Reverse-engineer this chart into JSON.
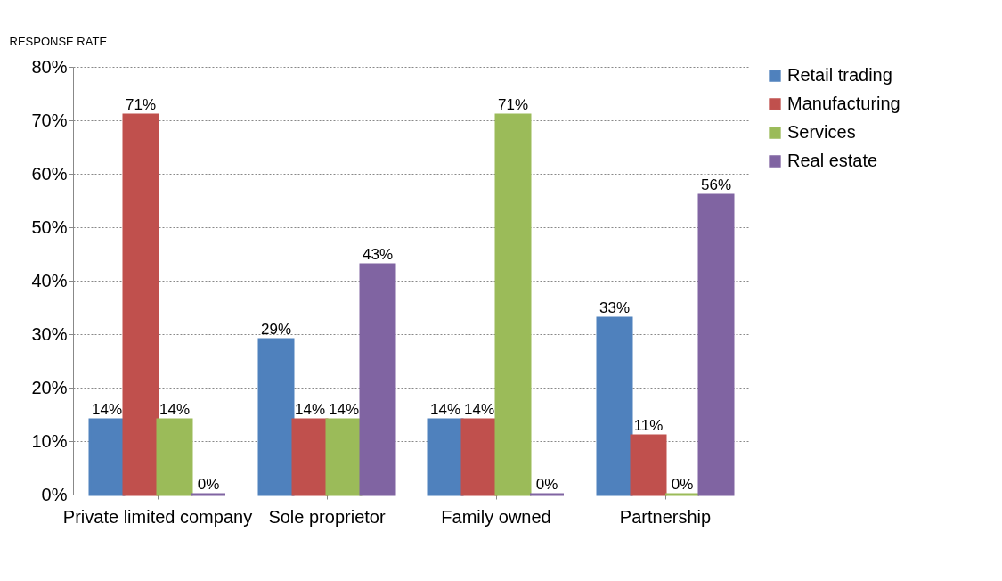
{
  "chart_data": {
    "type": "bar",
    "ylabel": "RESPONSE RATE",
    "categories": [
      "Private limited company",
      "Sole proprietor",
      "Family owned",
      "Partnership"
    ],
    "series": [
      {
        "name": "Retail trading",
        "color": "#4f81bd",
        "values": [
          14,
          29,
          14,
          33
        ],
        "value_labels": [
          "14%",
          "29%",
          "14%",
          "33%"
        ]
      },
      {
        "name": "Manufacturing",
        "color": "#c0504d",
        "values": [
          71,
          14,
          14,
          11
        ],
        "value_labels": [
          "71%",
          "14%",
          "14%",
          "11%"
        ]
      },
      {
        "name": "Services",
        "color": "#9bbb59",
        "values": [
          14,
          14,
          71,
          0
        ],
        "value_labels": [
          "14%",
          "14%",
          "71%",
          "0%"
        ]
      },
      {
        "name": "Real estate",
        "color": "#8064a2",
        "values": [
          0,
          43,
          0,
          56
        ],
        "value_labels": [
          "0%",
          "43%",
          "0%",
          "56%"
        ]
      }
    ],
    "ylim": [
      0,
      80
    ],
    "yticks": [
      {
        "value": 0,
        "label": "0%"
      },
      {
        "value": 10,
        "label": "10%"
      },
      {
        "value": 20,
        "label": "20%"
      },
      {
        "value": 30,
        "label": "30%"
      },
      {
        "value": 40,
        "label": "40%"
      },
      {
        "value": 50,
        "label": "50%"
      },
      {
        "value": 60,
        "label": "60%"
      },
      {
        "value": 70,
        "label": "70%"
      },
      {
        "value": 80,
        "label": "80%"
      }
    ],
    "grid": "y",
    "legend": "right"
  }
}
